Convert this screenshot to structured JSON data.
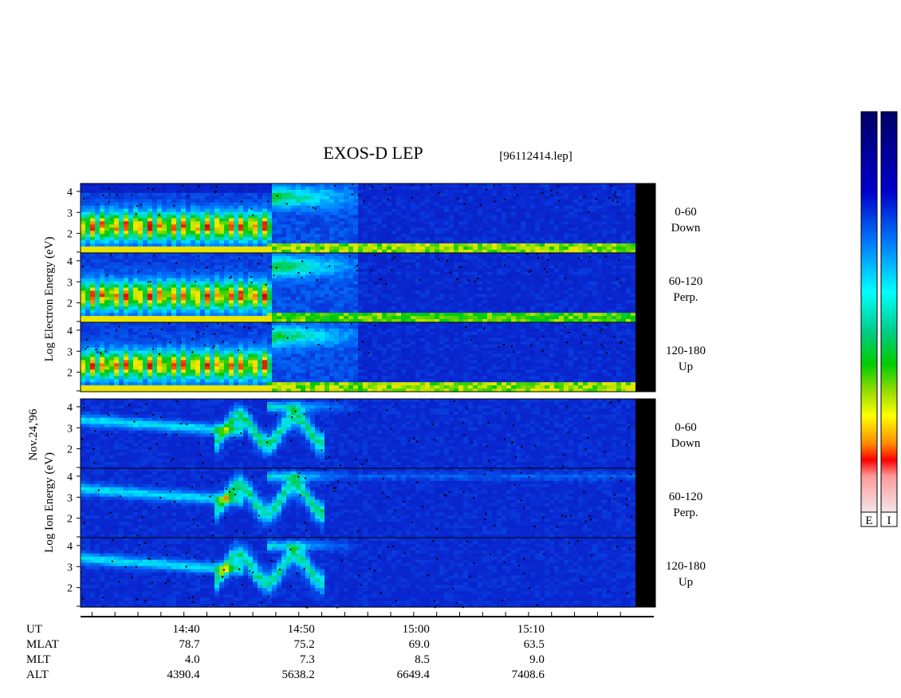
{
  "title": "EXOS-D LEP",
  "file_label": "[96112414.lep]",
  "date_label": "Nov.24,'96",
  "colors": {
    "background_blue": "#0a1fbf",
    "scale": [
      "#f2d9dc",
      "#ff0000",
      "#ff8800",
      "#ffff00",
      "#00cc00",
      "#00ffff",
      "#0088ff",
      "#0000cc",
      "#000066"
    ]
  },
  "chart_data": {
    "type": "heatmap",
    "title": "EXOS-D LEP",
    "ylabel_electron": [
      "Log",
      "Electron",
      "Energy",
      "(eV)"
    ],
    "ylabel_ion": [
      "Log",
      "Ion",
      "Energy",
      "(eV)"
    ],
    "y_ticks": [
      "4",
      "3",
      "2"
    ],
    "panels": [
      {
        "group": "Electron",
        "pitch_angle": "0-60",
        "direction": "Down"
      },
      {
        "group": "Electron",
        "pitch_angle": "60-120",
        "direction": "Perp."
      },
      {
        "group": "Electron",
        "pitch_angle": "120-180",
        "direction": "Up"
      },
      {
        "group": "Ion",
        "pitch_angle": "0-60",
        "direction": "Down"
      },
      {
        "group": "Ion",
        "pitch_angle": "60-120",
        "direction": "Perp."
      },
      {
        "group": "Ion",
        "pitch_angle": "120-180",
        "direction": "Up"
      }
    ],
    "ut_range": [
      "14:31",
      "15:20"
    ],
    "x_ticks": [
      "14:40",
      "14:50",
      "15:00",
      "15:10"
    ],
    "ephemeris_rows": [
      {
        "label": "UT",
        "values": [
          "14:40",
          "14:50",
          "15:00",
          "15:10"
        ]
      },
      {
        "label": "MLAT",
        "values": [
          "78.7",
          "75.2",
          "69.0",
          "63.5"
        ]
      },
      {
        "label": "MLT",
        "values": [
          "4.0",
          "7.3",
          "8.5",
          "9.0"
        ]
      },
      {
        "label": "ALT",
        "values": [
          "4390.4",
          "5638.2",
          "6649.4",
          "7408.6"
        ]
      }
    ],
    "colorbar_labels": [
      "E",
      "I"
    ]
  }
}
